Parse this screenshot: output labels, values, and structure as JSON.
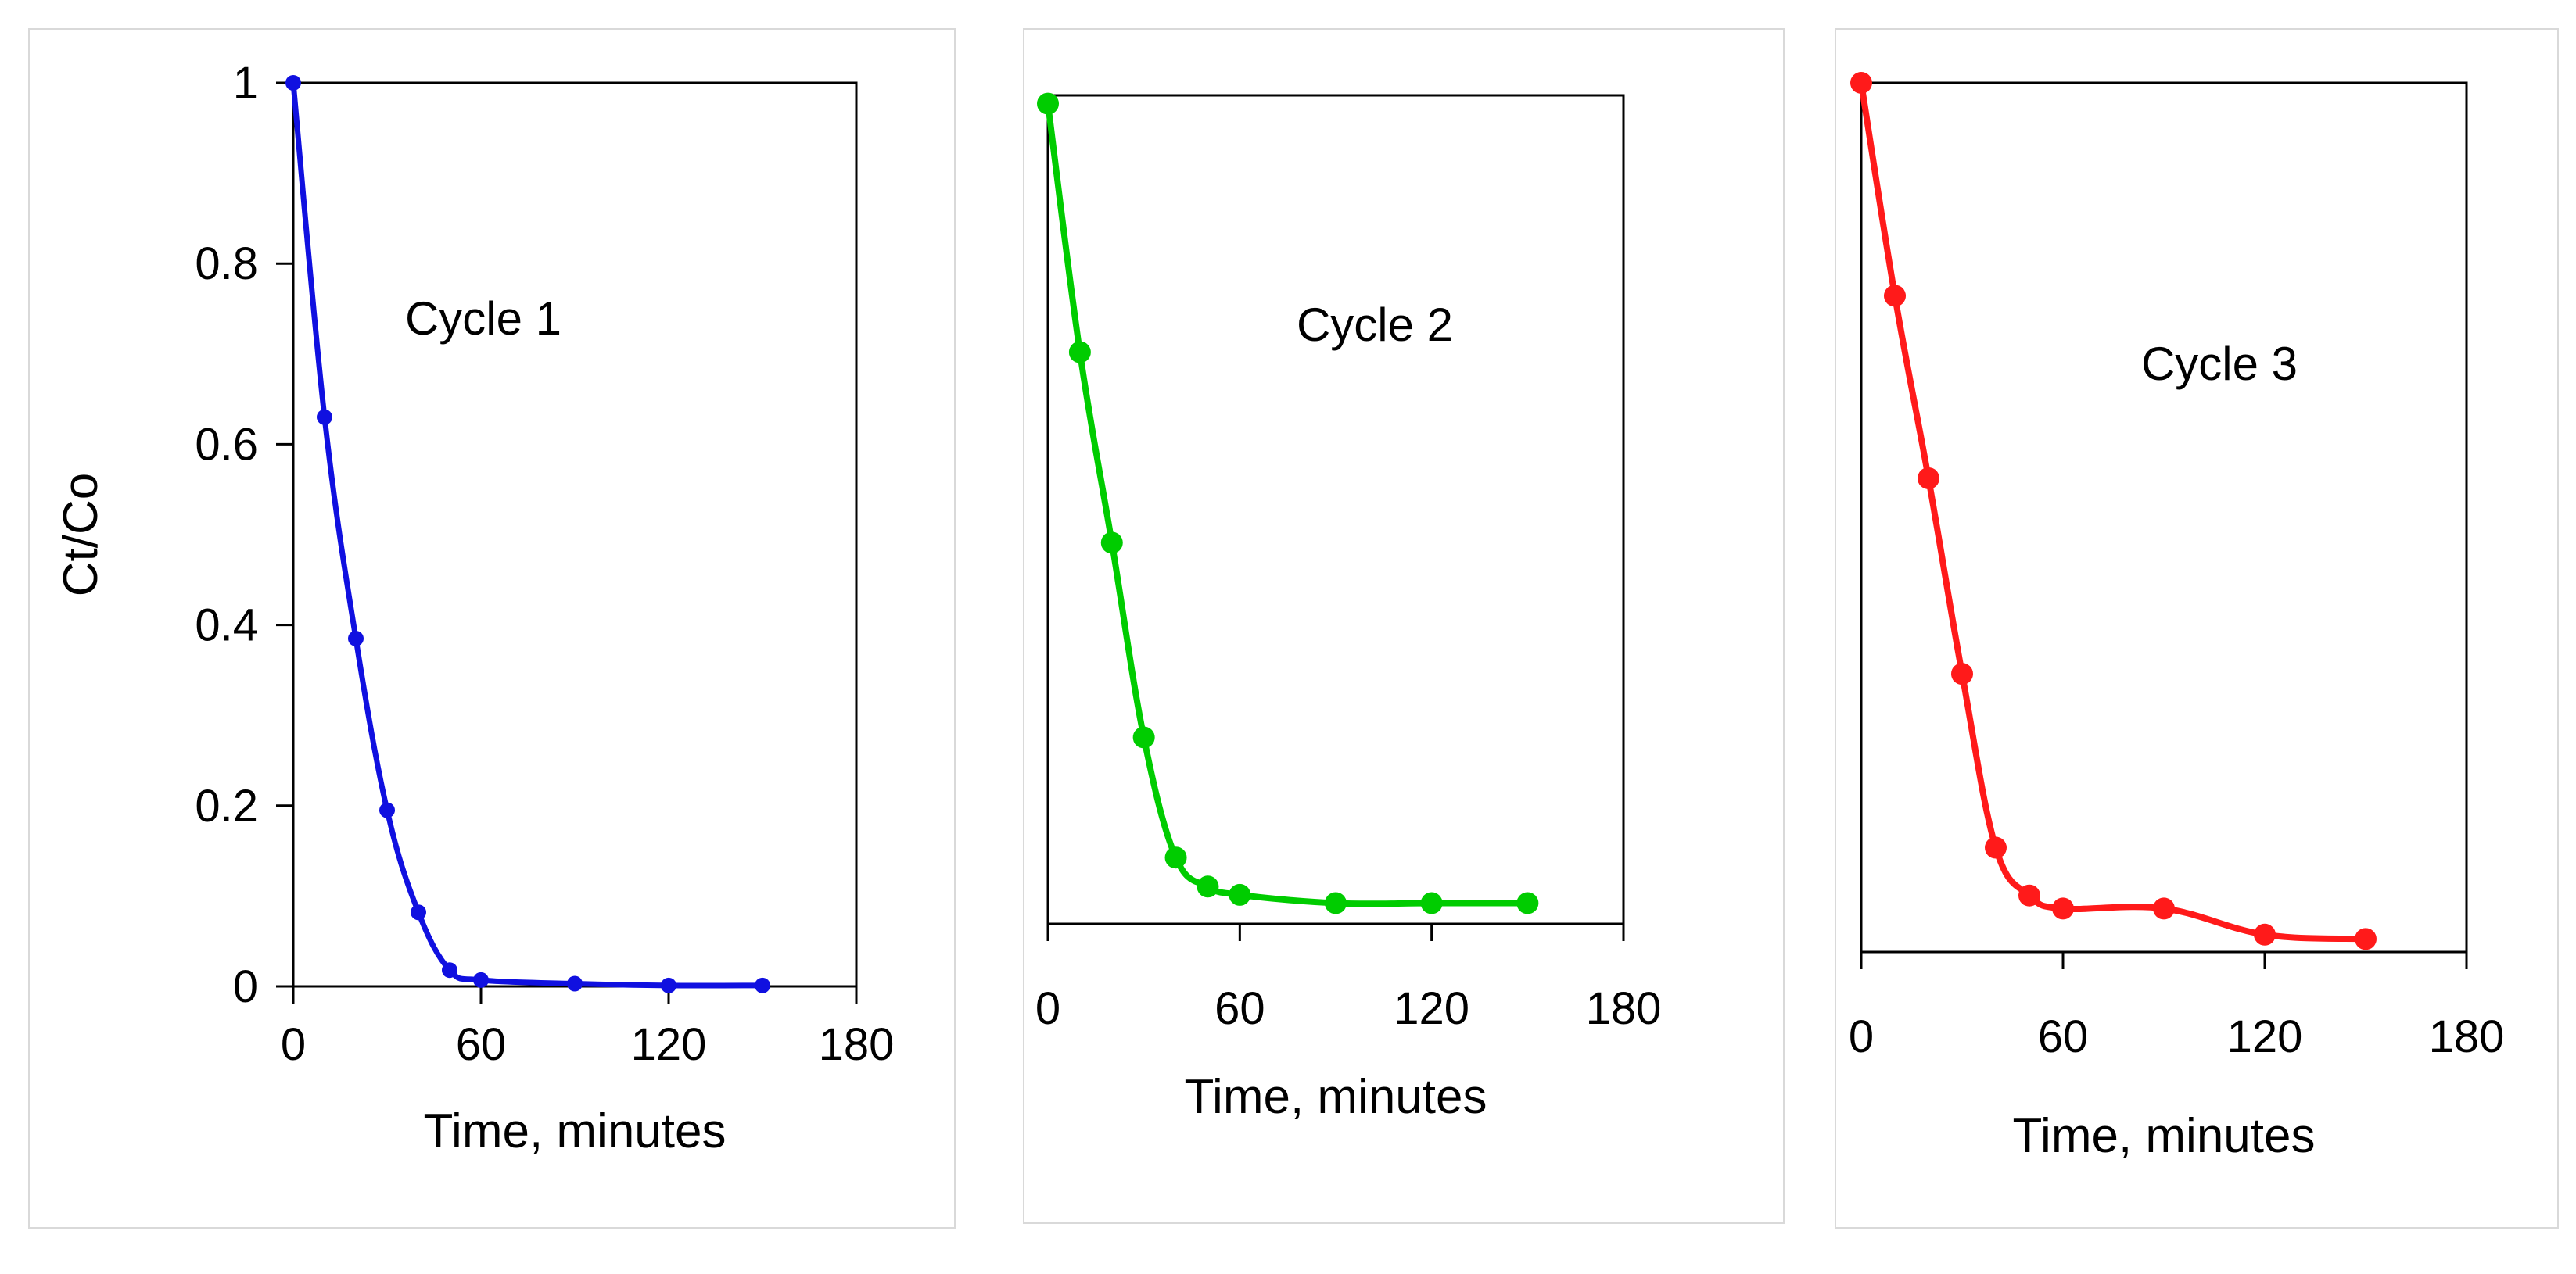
{
  "chart_data": [
    {
      "type": "line",
      "title": "",
      "annotation": "Cycle 1",
      "xlabel": "Time, minutes",
      "ylabel": "Ct/Co",
      "xlim": [
        0,
        180
      ],
      "ylim": [
        0,
        1
      ],
      "x_ticks": [
        "0",
        "60",
        "120",
        "180"
      ],
      "y_ticks": [
        "0",
        "0.2",
        "0.4",
        "0.6",
        "0.8",
        "1"
      ],
      "grid": false,
      "color": "#1010e0",
      "series": [
        {
          "name": "Cycle 1",
          "x": [
            0,
            10,
            20,
            30,
            40,
            50,
            60,
            90,
            120,
            150
          ],
          "y": [
            1.0,
            0.63,
            0.385,
            0.195,
            0.082,
            0.018,
            0.007,
            0.003,
            0.001,
            0.001
          ]
        }
      ]
    },
    {
      "type": "line",
      "title": "",
      "annotation": "Cycle 2",
      "xlabel": "Time, minutes",
      "ylabel": "",
      "xlim": [
        0,
        180
      ],
      "ylim": [
        0,
        1
      ],
      "x_ticks": [
        "0",
        "60",
        "120",
        "180"
      ],
      "y_ticks": [],
      "grid": false,
      "color": "#00cc00",
      "series": [
        {
          "name": "Cycle 2",
          "x": [
            0,
            10,
            20,
            30,
            40,
            50,
            60,
            90,
            120,
            150
          ],
          "y": [
            0.99,
            0.69,
            0.46,
            0.225,
            0.08,
            0.045,
            0.035,
            0.025,
            0.025,
            0.025
          ]
        }
      ]
    },
    {
      "type": "line",
      "title": "",
      "annotation": "Cycle 3",
      "xlabel": "Time, minutes",
      "ylabel": "",
      "xlim": [
        0,
        180
      ],
      "ylim": [
        0,
        1
      ],
      "x_ticks": [
        "0",
        "60",
        "120",
        "180"
      ],
      "y_ticks": [],
      "grid": false,
      "color": "#ff1a1a",
      "series": [
        {
          "name": "Cycle 3",
          "x": [
            0,
            10,
            20,
            30,
            40,
            50,
            60,
            90,
            120,
            150
          ],
          "y": [
            1.0,
            0.755,
            0.545,
            0.32,
            0.12,
            0.065,
            0.05,
            0.05,
            0.02,
            0.015
          ]
        }
      ]
    }
  ]
}
